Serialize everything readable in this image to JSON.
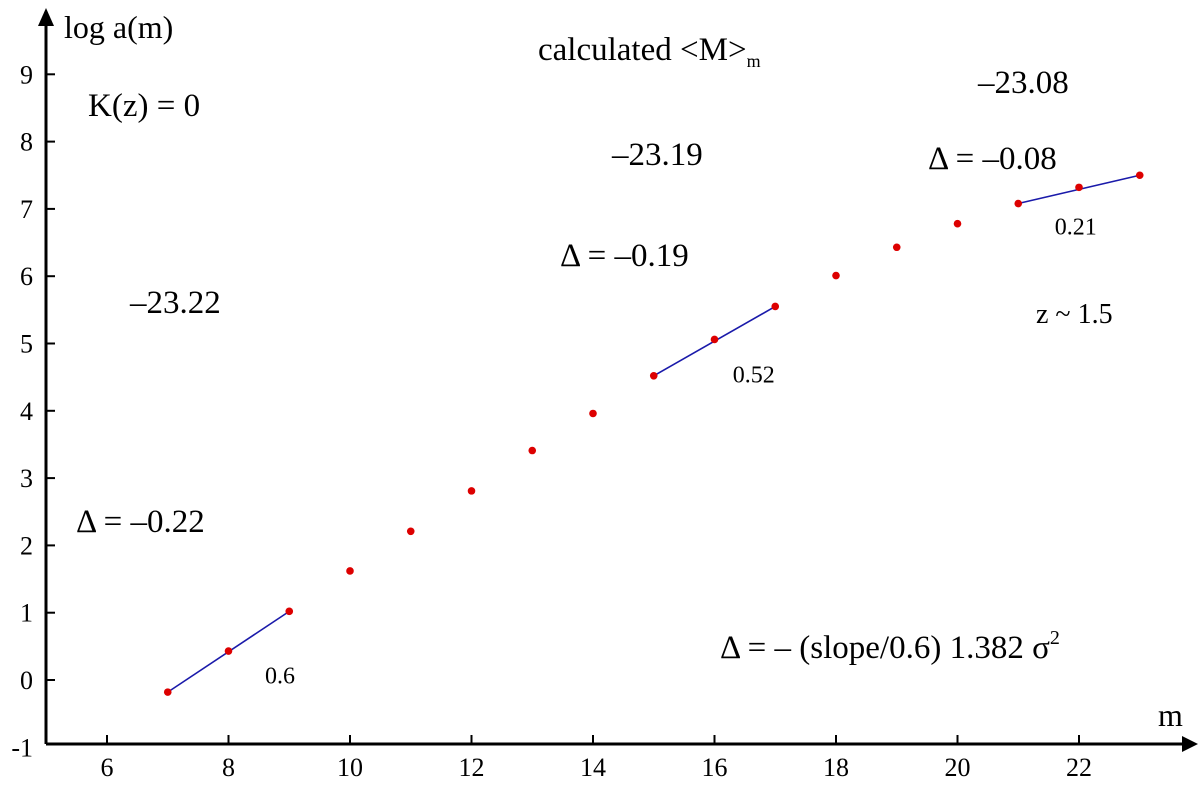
{
  "chart_data": {
    "type": "scatter",
    "xlabel": "m",
    "ylabel": "log a(m)",
    "xlim": [
      5,
      23.8
    ],
    "ylim": [
      -1,
      9.8
    ],
    "xticks": [
      6,
      8,
      10,
      12,
      14,
      16,
      18,
      20,
      22
    ],
    "yticks": [
      -1,
      0,
      1,
      2,
      3,
      4,
      5,
      6,
      7,
      8,
      9
    ],
    "grid": false,
    "colors": {
      "points": "#dd0000",
      "fit_lines": "#1a1aaa",
      "axes": "#000000"
    },
    "points": [
      {
        "x": 7,
        "y": -0.18
      },
      {
        "x": 8,
        "y": 0.43
      },
      {
        "x": 9,
        "y": 1.02
      },
      {
        "x": 10,
        "y": 1.62
      },
      {
        "x": 11,
        "y": 2.21
      },
      {
        "x": 12,
        "y": 2.81
      },
      {
        "x": 13,
        "y": 3.41
      },
      {
        "x": 14,
        "y": 3.96
      },
      {
        "x": 15,
        "y": 4.52
      },
      {
        "x": 16,
        "y": 5.06
      },
      {
        "x": 17,
        "y": 5.55
      },
      {
        "x": 18,
        "y": 6.01
      },
      {
        "x": 19,
        "y": 6.43
      },
      {
        "x": 20,
        "y": 6.78
      },
      {
        "x": 21,
        "y": 7.08
      },
      {
        "x": 22,
        "y": 7.32
      },
      {
        "x": 23,
        "y": 7.5
      }
    ],
    "fit_segments": [
      {
        "x1": 7,
        "y1": -0.18,
        "x2": 9,
        "y2": 1.02,
        "label": "0.6",
        "label_x": 8.6,
        "label_y": -0.05
      },
      {
        "x1": 15,
        "y1": 4.52,
        "x2": 17,
        "y2": 5.55,
        "label": "0.52",
        "label_x": 16.3,
        "label_y": 4.42
      },
      {
        "x1": 21,
        "y1": 7.08,
        "x2": 23,
        "y2": 7.5,
        "label": "0.21",
        "label_x": 21.6,
        "label_y": 6.62
      }
    ],
    "annotations": {
      "title_main": "calculated <M>",
      "title_sub": "m",
      "kz": "K(z) = 0",
      "v1": "–23.22",
      "d1": "Δ = –0.22",
      "v2": "–23.19",
      "d2": "Δ = –0.19",
      "v3": "–23.08",
      "d3": "Δ = –0.08",
      "z": "z ~ 1.5",
      "formula_main": "Δ = – (slope/0.6) 1.382 σ",
      "formula_sup": "2"
    }
  }
}
